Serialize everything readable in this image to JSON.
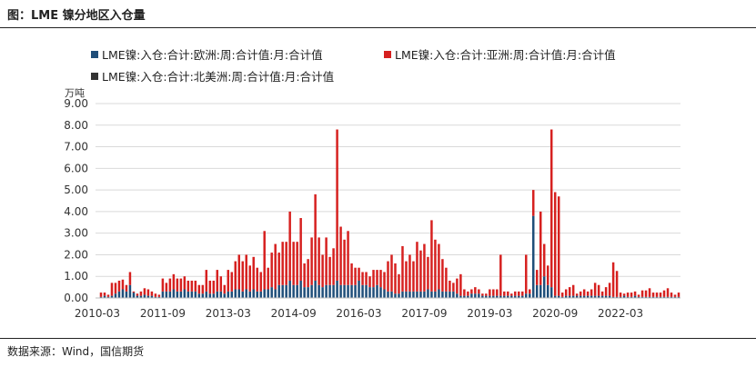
{
  "header": {
    "title": "图：LME 镍分地区入仓量"
  },
  "footer": {
    "source": "数据来源：Wind，国信期货"
  },
  "chart_data": {
    "type": "bar",
    "stacked": true,
    "unit_label": "万吨",
    "ylim": [
      0,
      9
    ],
    "yticks": [
      "0.00",
      "1.00",
      "2.00",
      "3.00",
      "4.00",
      "5.00",
      "6.00",
      "7.00",
      "8.00",
      "9.00"
    ],
    "x_tick_labels": [
      "2010-03",
      "2011-09",
      "2013-03",
      "2014-09",
      "2016-03",
      "2017-09",
      "2019-03",
      "2020-09",
      "2022-03"
    ],
    "x_start": "2010-03",
    "grid": true,
    "legend_position": "top",
    "series": [
      {
        "name": "LME镍:入仓:合计:欧洲:周:合计值:月:合计值",
        "color": "#1f4e79",
        "values": [
          0.02,
          0.05,
          0.1,
          0.05,
          0.1,
          0.2,
          0.3,
          0.4,
          0.3,
          0.6,
          0.25,
          0.1,
          0.1,
          0.15,
          0.1,
          0.1,
          0.05,
          0.05,
          0.3,
          0.3,
          0.3,
          0.4,
          0.3,
          0.3,
          0.4,
          0.3,
          0.3,
          0.3,
          0.2,
          0.2,
          0.3,
          0.2,
          0.2,
          0.3,
          0.3,
          0.2,
          0.3,
          0.3,
          0.4,
          0.4,
          0.3,
          0.4,
          0.3,
          0.4,
          0.3,
          0.3,
          0.4,
          0.4,
          0.5,
          0.4,
          0.6,
          0.6,
          0.6,
          0.8,
          0.6,
          0.6,
          0.8,
          0.5,
          0.5,
          0.6,
          0.8,
          0.6,
          0.5,
          0.6,
          0.6,
          0.6,
          0.8,
          0.6,
          0.6,
          0.6,
          0.6,
          0.6,
          0.8,
          0.6,
          0.6,
          0.5,
          0.5,
          0.6,
          0.5,
          0.4,
          0.3,
          0.3,
          0.2,
          0.2,
          0.3,
          0.3,
          0.3,
          0.3,
          0.3,
          0.3,
          0.3,
          0.4,
          0.3,
          0.3,
          0.4,
          0.3,
          0.3,
          0.3,
          0.3,
          0.2,
          0.1,
          0.1,
          0.1,
          0.2,
          0.2,
          0.2,
          0.1,
          0.1,
          0.1,
          0.1,
          0.1,
          0.1,
          0.1,
          0.1,
          0.1,
          0.1,
          0.1,
          0.1,
          0.2,
          0.2,
          3.8,
          0.6,
          0.6,
          1.0,
          0.6,
          0.5,
          0.1,
          0.1,
          0.05,
          0.1,
          0.1,
          0.1,
          0.1,
          0.1,
          0.1,
          0.1,
          0.1,
          0.1,
          0.1,
          0.1,
          0.1,
          0.1,
          0.05,
          0.05,
          0.05,
          0.1,
          0.05,
          0.05,
          0.1,
          0.05,
          0.05,
          0.05,
          0.05,
          0.05,
          0.05,
          0.05,
          0.05,
          0.05,
          0.05,
          0.05,
          0.05
        ]
      },
      {
        "name": "LME镍:入仓:合计:亚洲:周:合计值:月:合计值",
        "color": "#d6201f",
        "values": [
          0,
          0.2,
          0.15,
          0.1,
          0.6,
          0.5,
          0.5,
          0.45,
          0.3,
          0.6,
          0.05,
          0.1,
          0.2,
          0.3,
          0.3,
          0.2,
          0.15,
          0.1,
          0.6,
          0.4,
          0.6,
          0.7,
          0.6,
          0.6,
          0.6,
          0.5,
          0.5,
          0.5,
          0.4,
          0.4,
          1.0,
          0.6,
          0.6,
          1.0,
          0.7,
          0.4,
          1.0,
          0.9,
          1.3,
          1.6,
          1.4,
          1.6,
          1.2,
          1.5,
          1.1,
          0.9,
          2.7,
          1.0,
          1.6,
          2.1,
          1.5,
          2.0,
          2.0,
          3.2,
          2.0,
          2.0,
          2.9,
          1.1,
          1.3,
          2.2,
          4.0,
          2.2,
          1.5,
          2.2,
          1.3,
          1.7,
          7.0,
          2.7,
          2.1,
          2.5,
          1.0,
          0.8,
          0.6,
          0.6,
          0.6,
          0.5,
          0.8,
          0.7,
          0.8,
          0.8,
          1.4,
          1.7,
          1.4,
          0.9,
          2.1,
          1.4,
          1.7,
          1.4,
          2.3,
          1.9,
          2.2,
          1.5,
          3.3,
          2.4,
          2.1,
          1.5,
          1.1,
          0.5,
          0.4,
          0.7,
          1.0,
          0.3,
          0.2,
          0.2,
          0.3,
          0.2,
          0.1,
          0.1,
          0.3,
          0.3,
          0.3,
          1.9,
          0.2,
          0.2,
          0.1,
          0.2,
          0.2,
          0.2,
          1.8,
          0.2,
          1.2,
          0.7,
          3.4,
          1.5,
          0.9,
          7.3,
          4.8,
          4.6,
          0.2,
          0.3,
          0.4,
          0.5,
          0.1,
          0.2,
          0.3,
          0.2,
          0.3,
          0.6,
          0.5,
          0.2,
          0.4,
          0.6,
          1.6,
          1.2,
          0.2,
          0.1,
          0.2,
          0.2,
          0.2,
          0.1,
          0.3,
          0.3,
          0.4,
          0.2,
          0.2,
          0.2,
          0.3,
          0.4,
          0.2,
          0.1,
          0.2,
          0.3,
          0.3,
          0.4,
          0.7
        ]
      },
      {
        "name": "LME镍:入仓:合计:北美洲:周:合计值:月:合计值",
        "color": "#333333",
        "values": [
          0,
          0,
          0,
          0,
          0,
          0,
          0,
          0,
          0,
          0,
          0,
          0,
          0,
          0,
          0,
          0,
          0,
          0,
          0,
          0,
          0,
          0,
          0,
          0,
          0,
          0,
          0,
          0,
          0,
          0,
          0,
          0,
          0,
          0,
          0,
          0,
          0,
          0,
          0,
          0,
          0,
          0,
          0,
          0,
          0,
          0,
          0,
          0,
          0,
          0,
          0,
          0,
          0,
          0,
          0,
          0,
          0,
          0,
          0,
          0,
          0,
          0,
          0,
          0,
          0,
          0,
          0,
          0,
          0,
          0,
          0,
          0,
          0,
          0,
          0,
          0,
          0,
          0,
          0,
          0,
          0,
          0,
          0,
          0,
          0,
          0,
          0,
          0,
          0,
          0,
          0,
          0,
          0,
          0,
          0,
          0,
          0,
          0,
          0,
          0,
          0,
          0,
          0,
          0,
          0,
          0,
          0,
          0,
          0,
          0,
          0,
          0,
          0,
          0,
          0,
          0,
          0,
          0,
          0,
          0,
          0,
          0,
          0,
          0,
          0,
          0,
          0,
          0,
          0,
          0,
          0,
          0,
          0,
          0,
          0,
          0,
          0,
          0,
          0,
          0,
          0,
          0,
          0,
          0,
          0,
          0,
          0,
          0,
          0,
          0,
          0,
          0,
          0,
          0,
          0,
          0,
          0,
          0,
          0,
          0,
          0,
          0,
          0,
          0,
          0,
          0
        ]
      }
    ]
  }
}
